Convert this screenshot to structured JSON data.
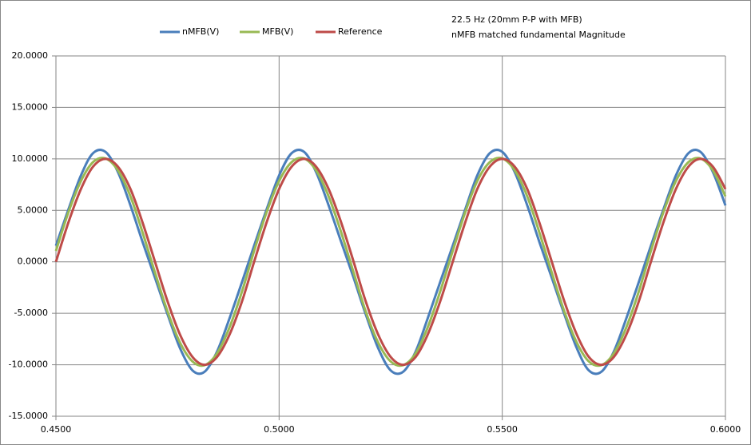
{
  "chart_data": {
    "type": "line",
    "annotations": [
      "22.5 Hz (20mm P-P with MFB)",
      "nMFB matched fundamental Magnitude"
    ],
    "x": [
      0.45,
      0.4528,
      0.4556,
      0.4583,
      0.4611,
      0.4639,
      0.4667,
      0.4694,
      0.4722,
      0.475,
      0.4778,
      0.4806,
      0.4833,
      0.4861,
      0.4889,
      0.4917,
      0.4944,
      0.4972,
      0.5,
      0.5028,
      0.5056,
      0.5083,
      0.5111,
      0.5139,
      0.5167,
      0.5194,
      0.5222,
      0.525,
      0.5278,
      0.5306,
      0.5333,
      0.5361,
      0.5389,
      0.5417,
      0.5444,
      0.5472,
      0.55,
      0.5528,
      0.5556,
      0.5583,
      0.5611,
      0.5639,
      0.5667,
      0.5694,
      0.5722,
      0.575,
      0.5778,
      0.5806,
      0.5833,
      0.5861,
      0.5889,
      0.5917,
      0.5944,
      0.5972,
      0.6
    ],
    "series": [
      {
        "name": "nMFB(V)",
        "color": "#4a7ebb",
        "values": [
          1.56,
          5.09,
          8.39,
          10.55,
          10.68,
          8.71,
          5.48,
          1.95,
          -1.56,
          -5.09,
          -8.39,
          -10.55,
          -10.68,
          -8.71,
          -5.48,
          -1.95,
          1.56,
          5.09,
          8.39,
          10.55,
          10.68,
          8.71,
          5.48,
          1.95,
          -1.56,
          -5.09,
          -8.39,
          -10.55,
          -10.68,
          -8.71,
          -5.48,
          -1.95,
          1.56,
          5.09,
          8.39,
          10.55,
          10.68,
          8.71,
          5.48,
          1.95,
          -1.56,
          -5.09,
          -8.39,
          -10.55,
          -10.68,
          -8.71,
          -5.48,
          -1.95,
          1.56,
          5.09,
          8.39,
          10.55,
          10.68,
          8.71,
          5.48
        ]
      },
      {
        "name": "MFB(V)",
        "color": "#98b954",
        "values": [
          1.06,
          4.82,
          7.85,
          9.68,
          10.04,
          8.88,
          6.36,
          2.87,
          -1.06,
          -4.82,
          -7.85,
          -9.68,
          -10.04,
          -8.88,
          -6.36,
          -2.87,
          1.06,
          4.82,
          7.85,
          9.68,
          10.04,
          8.88,
          6.36,
          2.87,
          -1.06,
          -4.82,
          -7.85,
          -9.68,
          -10.04,
          -8.88,
          -6.36,
          -2.87,
          1.06,
          4.82,
          7.85,
          9.68,
          10.04,
          8.88,
          6.36,
          2.87,
          -1.06,
          -4.82,
          -7.85,
          -9.68,
          -10.04,
          -8.88,
          -6.36,
          -2.87,
          1.06,
          4.82,
          7.85,
          9.68,
          10.04,
          8.88,
          6.36
        ]
      },
      {
        "name": "Reference",
        "color": "#be4b48",
        "values": [
          0,
          3.83,
          7.07,
          9.24,
          10,
          9.24,
          7.07,
          3.83,
          0,
          -3.83,
          -7.07,
          -9.24,
          -10,
          -9.24,
          -7.07,
          -3.83,
          0,
          3.83,
          7.07,
          9.24,
          10,
          9.24,
          7.07,
          3.83,
          0,
          -3.83,
          -7.07,
          -9.24,
          -10,
          -9.24,
          -7.07,
          -3.83,
          0,
          3.83,
          7.07,
          9.24,
          10,
          9.24,
          7.07,
          3.83,
          0,
          -3.83,
          -7.07,
          -9.24,
          -10,
          -9.24,
          -7.07,
          -3.83,
          0,
          3.83,
          7.07,
          9.24,
          10,
          9.24,
          7.07
        ]
      }
    ],
    "xlim": [
      0.45,
      0.6
    ],
    "xticks": [
      {
        "value": 0.45,
        "label": "0.4500"
      },
      {
        "value": 0.5,
        "label": "0.5000"
      },
      {
        "value": 0.55,
        "label": "0.5500"
      },
      {
        "value": 0.6,
        "label": "0.6000"
      }
    ],
    "ylim": [
      -15,
      20
    ],
    "yticks": [
      {
        "value": -15,
        "label": "-15.0000"
      },
      {
        "value": -10,
        "label": "-10.0000"
      },
      {
        "value": -5,
        "label": "-5.0000"
      },
      {
        "value": 0,
        "label": "0.0000"
      },
      {
        "value": 5,
        "label": "5.0000"
      },
      {
        "value": 10,
        "label": "10.0000"
      },
      {
        "value": 15,
        "label": "15.0000"
      },
      {
        "value": 20,
        "label": "20.0000"
      }
    ],
    "grid": true,
    "legend": "top"
  }
}
